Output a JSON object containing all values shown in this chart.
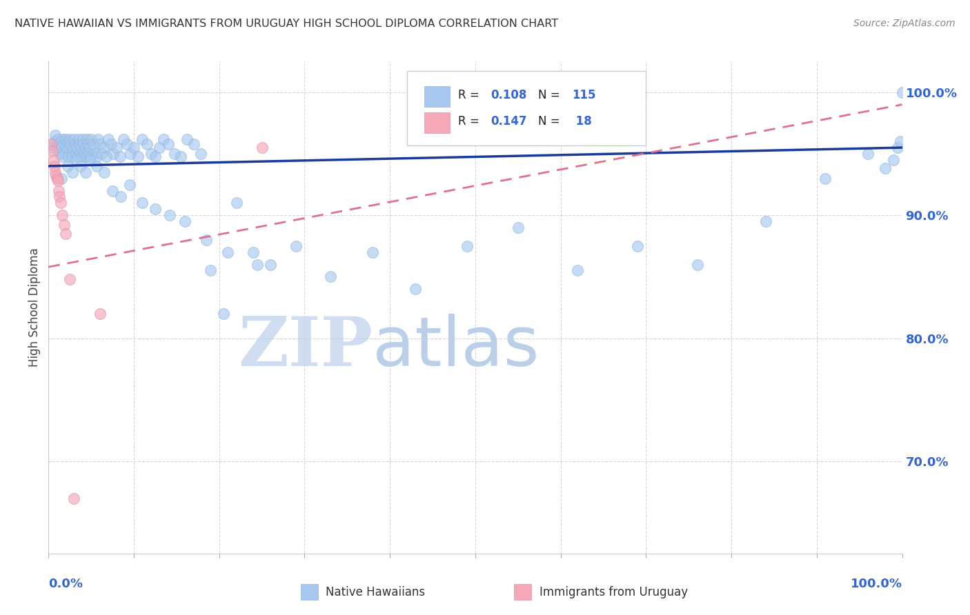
{
  "title": "NATIVE HAWAIIAN VS IMMIGRANTS FROM URUGUAY HIGH SCHOOL DIPLOMA CORRELATION CHART",
  "source": "Source: ZipAtlas.com",
  "ylabel": "High School Diploma",
  "xlim": [
    0.0,
    1.0
  ],
  "ylim": [
    0.625,
    1.025
  ],
  "yticks": [
    0.7,
    0.8,
    0.9,
    1.0
  ],
  "ytick_labels": [
    "70.0%",
    "80.0%",
    "90.0%",
    "100.0%"
  ],
  "native_hawaiian_color": "#a8c8f0",
  "immigrant_color": "#f5a8b8",
  "trend_blue_color": "#1a3a9c",
  "trend_pink_color": "#e07090",
  "watermark_zip_color": "#c0d0e8",
  "watermark_atlas_color": "#b0c8e8",
  "title_color": "#333333",
  "axis_label_color": "#3366cc",
  "grid_color": "#cccccc",
  "legend_r1_blue": "0.108",
  "legend_n1_blue": "115",
  "legend_r2_pink": "0.147",
  "legend_n2_pink": " 18",
  "native_hawaiian_x": [
    0.003,
    0.007,
    0.008,
    0.01,
    0.011,
    0.012,
    0.013,
    0.014,
    0.015,
    0.016,
    0.017,
    0.018,
    0.019,
    0.02,
    0.021,
    0.022,
    0.023,
    0.024,
    0.025,
    0.026,
    0.027,
    0.028,
    0.029,
    0.03,
    0.031,
    0.032,
    0.033,
    0.034,
    0.035,
    0.036,
    0.037,
    0.038,
    0.039,
    0.04,
    0.041,
    0.042,
    0.043,
    0.044,
    0.045,
    0.046,
    0.047,
    0.048,
    0.049,
    0.05,
    0.052,
    0.054,
    0.056,
    0.058,
    0.06,
    0.062,
    0.065,
    0.068,
    0.07,
    0.073,
    0.076,
    0.08,
    0.084,
    0.088,
    0.092,
    0.096,
    0.1,
    0.105,
    0.11,
    0.115,
    0.12,
    0.125,
    0.13,
    0.135,
    0.14,
    0.148,
    0.155,
    0.162,
    0.17,
    0.178,
    0.19,
    0.205,
    0.22,
    0.24,
    0.26,
    0.29,
    0.33,
    0.38,
    0.43,
    0.49,
    0.55,
    0.62,
    0.69,
    0.76,
    0.84,
    0.91,
    0.96,
    0.98,
    0.99,
    0.995,
    0.998,
    1.0,
    0.015,
    0.022,
    0.028,
    0.033,
    0.038,
    0.043,
    0.048,
    0.056,
    0.065,
    0.075,
    0.085,
    0.095,
    0.11,
    0.125,
    0.142,
    0.16,
    0.185,
    0.21,
    0.245
  ],
  "native_hawaiian_y": [
    0.955,
    0.96,
    0.965,
    0.955,
    0.962,
    0.958,
    0.95,
    0.96,
    0.955,
    0.948,
    0.962,
    0.958,
    0.95,
    0.962,
    0.955,
    0.96,
    0.948,
    0.955,
    0.962,
    0.958,
    0.95,
    0.948,
    0.955,
    0.962,
    0.958,
    0.95,
    0.955,
    0.948,
    0.962,
    0.958,
    0.95,
    0.955,
    0.948,
    0.962,
    0.958,
    0.95,
    0.955,
    0.948,
    0.962,
    0.958,
    0.95,
    0.955,
    0.948,
    0.962,
    0.958,
    0.95,
    0.948,
    0.962,
    0.958,
    0.95,
    0.955,
    0.948,
    0.962,
    0.958,
    0.95,
    0.955,
    0.948,
    0.962,
    0.958,
    0.95,
    0.955,
    0.948,
    0.962,
    0.958,
    0.95,
    0.948,
    0.955,
    0.962,
    0.958,
    0.95,
    0.948,
    0.962,
    0.958,
    0.95,
    0.855,
    0.82,
    0.91,
    0.87,
    0.86,
    0.875,
    0.85,
    0.87,
    0.84,
    0.875,
    0.89,
    0.855,
    0.875,
    0.86,
    0.895,
    0.93,
    0.95,
    0.938,
    0.945,
    0.955,
    0.96,
    1.0,
    0.93,
    0.94,
    0.935,
    0.945,
    0.94,
    0.935,
    0.945,
    0.94,
    0.935,
    0.92,
    0.915,
    0.925,
    0.91,
    0.905,
    0.9,
    0.895,
    0.88,
    0.87,
    0.86
  ],
  "immigrant_x": [
    0.003,
    0.005,
    0.006,
    0.007,
    0.008,
    0.009,
    0.01,
    0.011,
    0.012,
    0.013,
    0.014,
    0.016,
    0.018,
    0.02,
    0.025,
    0.06,
    0.25,
    0.03
  ],
  "immigrant_y": [
    0.958,
    0.952,
    0.945,
    0.94,
    0.935,
    0.932,
    0.93,
    0.928,
    0.92,
    0.915,
    0.91,
    0.9,
    0.892,
    0.885,
    0.848,
    0.82,
    0.955,
    0.67
  ],
  "blue_trend_x0": 0.0,
  "blue_trend_y0": 0.94,
  "blue_trend_x1": 1.0,
  "blue_trend_y1": 0.955,
  "pink_trend_x0": 0.0,
  "pink_trend_y0": 0.858,
  "pink_trend_x1": 1.0,
  "pink_trend_y1": 0.99
}
